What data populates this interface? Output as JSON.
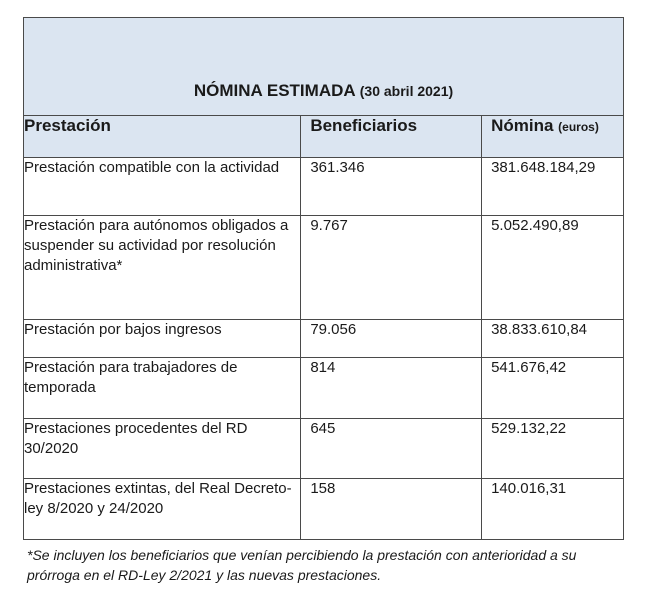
{
  "table": {
    "title": "NÓMINA ESTIMADA",
    "title_date": "(30 abril 2021)",
    "columns": {
      "prestacion": "Prestación",
      "beneficiarios": "Beneficiarios",
      "nomina": "Nómina",
      "nomina_unit": "(euros)"
    },
    "rows": [
      {
        "prestacion": "Prestación compatible con la actividad",
        "beneficiarios": "361.346",
        "nomina": "381.648.184,29"
      },
      {
        "prestacion": "Prestación para autónomos obligados a suspender su actividad por resolución administrativa*",
        "beneficiarios": "9.767",
        "nomina": "5.052.490,89"
      },
      {
        "prestacion": "Prestación por bajos ingresos",
        "beneficiarios": "79.056",
        "nomina": "38.833.610,84"
      },
      {
        "prestacion": "Prestación para trabajadores de temporada",
        "beneficiarios": "814",
        "nomina": "541.676,42"
      },
      {
        "prestacion": "Prestaciones procedentes del RD 30/2020",
        "beneficiarios": "645",
        "nomina": "529.132,22"
      },
      {
        "prestacion": "Prestaciones extintas, del Real Decreto-ley 8/2020 y 24/2020",
        "beneficiarios": "158",
        "nomina": "140.016,31"
      }
    ]
  },
  "footnote": "*Se incluyen los beneficiarios que venían percibiendo la prestación con anterioridad a su prórroga en el RD-Ley 2/2021 y las nuevas prestaciones.",
  "colors": {
    "header_bg": "#dbe5f1",
    "border": "#4a4a4a",
    "text": "#1a1a1a"
  }
}
